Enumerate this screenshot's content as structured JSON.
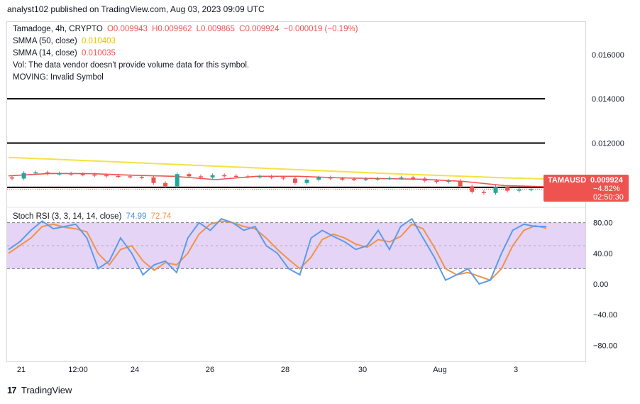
{
  "header": {
    "publish_line": "analyst102 published on TradingView.com, Aug 03, 2023 09:09 UTC"
  },
  "legend": {
    "symbol_line": "Tamadoge, 4h, CRYPTO",
    "open": "O0.009943",
    "high": "H0.009962",
    "low": "L0.009865",
    "close": "C0.009924",
    "change": "−0.000019 (−0.19%)",
    "sma50_label": "SMMA (50, close)",
    "sma50_value": "0.010403",
    "sma14_label": "SMMA (14, close)",
    "sma14_value": "0.010035",
    "vol_line": "Vol: The data vendor doesn't provide volume data for this symbol.",
    "moving_line": "MOVING: Invalid Symbol",
    "stoch_label": "Stoch RSI (3, 3, 14, 14, close)",
    "stoch_k": "74.99",
    "stoch_d": "72.74"
  },
  "price_badge": {
    "symbol": "TAMAUSD",
    "price": "0.009924",
    "change": "−4.82%",
    "countdown": "02:50:30"
  },
  "footer": {
    "brand": "TradingView",
    "logo_mark": "17"
  },
  "colors": {
    "up": "#26a69a",
    "down": "#ef5350",
    "sma50": "#f5e142",
    "sma14": "#ef5350",
    "stoch_k": "#5b9bea",
    "stoch_d": "#f0924b",
    "band": "#e1ccf5"
  },
  "chart_data": [
    {
      "type": "candlestick",
      "title": "Tamadoge, 4h, CRYPTO",
      "ylim": [
        0.0091,
        0.0175
      ],
      "y_ticks": [
        "0.016000",
        "0.014000",
        "0.012000"
      ],
      "x_ticks": [
        "21",
        "12:00",
        "24",
        "26",
        "28",
        "30",
        "Aug",
        "3"
      ],
      "horizontal_levels": [
        0.014,
        0.012,
        0.01
      ],
      "sma50": [
        0.01135,
        0.01128,
        0.0112,
        0.01112,
        0.01104,
        0.01096,
        0.01088,
        0.0108,
        0.01072,
        0.01064,
        0.01057,
        0.0105,
        0.01043,
        0.01038
      ],
      "sma14": [
        0.01052,
        0.01063,
        0.01062,
        0.01055,
        0.0105,
        0.01035,
        0.0105,
        0.0105,
        0.01043,
        0.0104,
        0.01037,
        0.01027,
        0.01008,
        0.01003
      ],
      "closes": [
        0.0104,
        0.01065,
        0.01068,
        0.01062,
        0.01063,
        0.0106,
        0.01058,
        0.01055,
        0.01052,
        0.0105,
        0.01048,
        0.01045,
        0.0102,
        0.01005,
        0.0106,
        0.0105,
        0.01045,
        0.01055,
        0.01052,
        0.0105,
        0.01048,
        0.0105,
        0.01045,
        0.0104,
        0.0102,
        0.01035,
        0.01045,
        0.0104,
        0.01038,
        0.01036,
        0.01038,
        0.0104,
        0.01042,
        0.01045,
        0.0104,
        0.0103,
        0.01025,
        0.0103,
        0.01005,
        0.0098,
        0.00975,
        0.01002,
        0.00985,
        0.0099,
        0.00992
      ]
    },
    {
      "type": "line",
      "title": "Stoch RSI (3, 3, 14, 14, close)",
      "ylim": [
        -100,
        100
      ],
      "y_ticks": [
        80,
        40,
        0,
        -40,
        -80
      ],
      "band": [
        20,
        80
      ],
      "series": [
        {
          "name": "K",
          "values": [
            45,
            55,
            70,
            82,
            72,
            75,
            78,
            60,
            20,
            30,
            60,
            40,
            12,
            25,
            30,
            15,
            60,
            80,
            70,
            85,
            80,
            70,
            75,
            50,
            40,
            20,
            12,
            60,
            70,
            62,
            55,
            45,
            50,
            70,
            45,
            75,
            85,
            60,
            35,
            5,
            12,
            20,
            0,
            5,
            40,
            70,
            78,
            75,
            74.99
          ]
        },
        {
          "name": "D",
          "values": [
            40,
            50,
            60,
            75,
            78,
            74,
            72,
            68,
            40,
            25,
            45,
            50,
            30,
            18,
            28,
            25,
            40,
            65,
            78,
            82,
            80,
            75,
            72,
            60,
            45,
            32,
            20,
            35,
            58,
            65,
            60,
            52,
            48,
            58,
            55,
            62,
            78,
            72,
            48,
            20,
            12,
            15,
            10,
            5,
            20,
            50,
            70,
            76,
            72.74
          ]
        }
      ]
    }
  ]
}
